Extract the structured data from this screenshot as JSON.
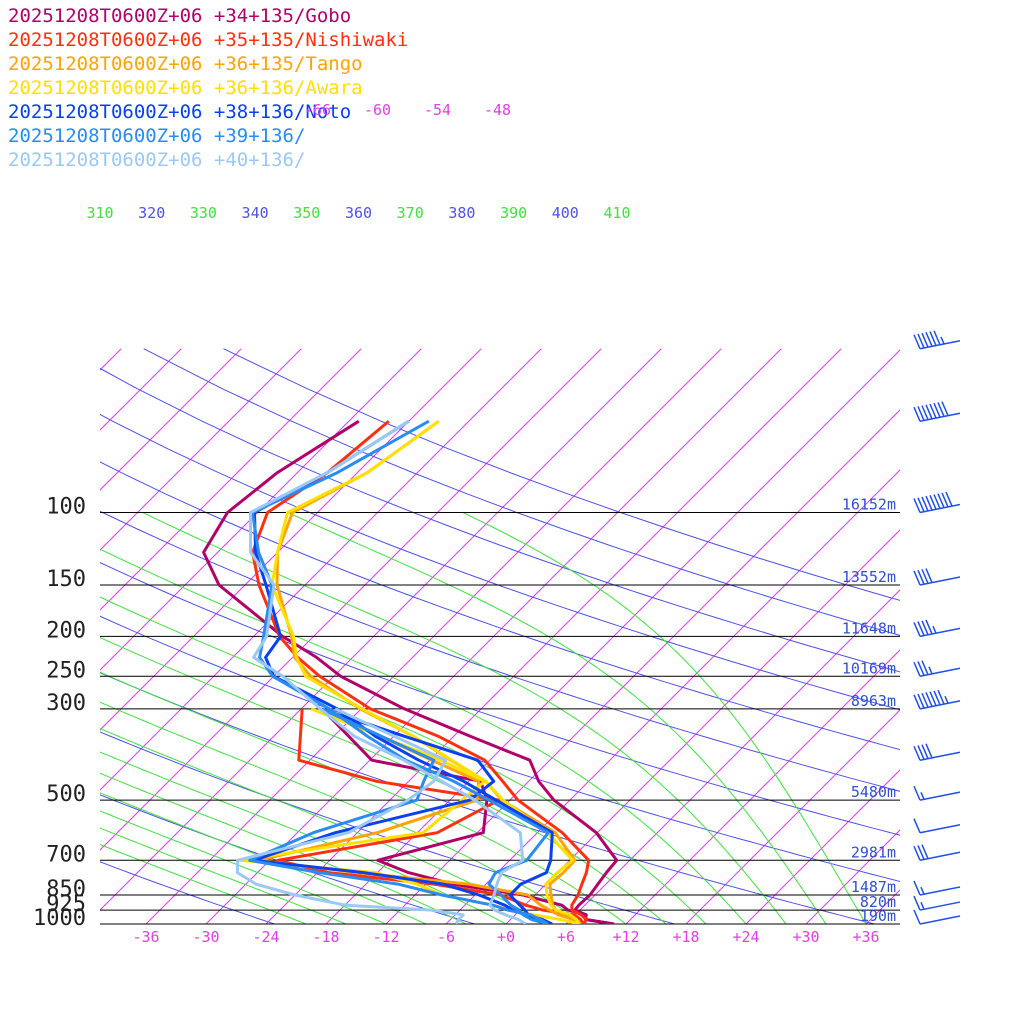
{
  "legend": [
    {
      "label": "20251208T0600Z+06 +34+135/Gobo",
      "color": "#b0006a"
    },
    {
      "label": "20251208T0600Z+06 +35+135/Nishiwaki",
      "color": "#ff3010"
    },
    {
      "label": "20251208T0600Z+06 +36+135/Tango",
      "color": "#ffa400"
    },
    {
      "label": "20251208T0600Z+06 +36+136/Awara",
      "color": "#ffe000"
    },
    {
      "label": "20251208T0600Z+06 +38+136/Noto",
      "color": "#0a40f0"
    },
    {
      "label": "20251208T0600Z+06 +39+136/",
      "color": "#2a8cf0"
    },
    {
      "label": "20251208T0600Z+06 +40+136/",
      "color": "#9cc8f4"
    }
  ],
  "chart_data": {
    "type": "line",
    "subtype": "skew-T log-P sounding",
    "pressure_labels": [
      "100",
      "150",
      "200",
      "250",
      "300",
      "500",
      "700",
      "850",
      "925",
      "1000"
    ],
    "pressure_levels": [
      100,
      150,
      200,
      250,
      300,
      500,
      700,
      850,
      925,
      1000
    ],
    "height_labels": [
      {
        "p": 100,
        "text": "16152m"
      },
      {
        "p": 150,
        "text": "13552m"
      },
      {
        "p": 200,
        "text": "11648m"
      },
      {
        "p": 250,
        "text": "10169m"
      },
      {
        "p": 300,
        "text": "8963m"
      },
      {
        "p": 500,
        "text": "5480m"
      },
      {
        "p": 700,
        "text": "2981m"
      },
      {
        "p": 850,
        "text": "1487m"
      },
      {
        "p": 925,
        "text": "820m"
      },
      {
        "p": 1000,
        "text": "190m"
      }
    ],
    "x_tick_labels": [
      "-36",
      "-30",
      "-24",
      "-18",
      "-12",
      "-6",
      "+0",
      "+6",
      "+12",
      "+18",
      "+24",
      "+30",
      "+36"
    ],
    "x_ticks": [
      -36,
      -30,
      -24,
      -18,
      -12,
      -6,
      0,
      6,
      12,
      18,
      24,
      30,
      36
    ],
    "upper_temp_labels": [
      "-66",
      "-60",
      "-54",
      "-48"
    ],
    "upper_temp_values": [
      -66,
      -60,
      -54,
      -48
    ],
    "theta_labels": [
      "310",
      "320",
      "330",
      "340",
      "350",
      "360",
      "370",
      "380",
      "390",
      "400",
      "410"
    ],
    "theta_values": [
      310,
      320,
      330,
      340,
      350,
      360,
      370,
      380,
      390,
      400,
      410
    ],
    "xlim": [
      -40,
      40
    ],
    "colors": {
      "isotherm": "#e040e0",
      "dry_adiabat": "#5050ee",
      "moist_adiabat": "#40e040",
      "height_label": "#3050d0"
    },
    "series": [
      {
        "name": "Gobo",
        "color": "#b0006a",
        "temperature": [
          [
            1000,
            10.8
          ],
          [
            975,
            7.5
          ],
          [
            950,
            7.1
          ],
          [
            925,
            5.5
          ],
          [
            900,
            5.4
          ],
          [
            850,
            5.5
          ],
          [
            800,
            5.2
          ],
          [
            750,
            4.9
          ],
          [
            700,
            4.7
          ],
          [
            600,
            -0.1
          ],
          [
            500,
            -7.6
          ],
          [
            450,
            -11.0
          ],
          [
            400,
            -14.0
          ],
          [
            350,
            -22.3
          ],
          [
            300,
            -31.7
          ],
          [
            250,
            -41.3
          ],
          [
            225,
            -45.6
          ],
          [
            200,
            -51.1
          ],
          [
            150,
            -62.6
          ],
          [
            125,
            -67.4
          ],
          [
            100,
            -69.0
          ],
          [
            80,
            -68.0
          ],
          [
            60,
            -65.0
          ]
        ],
        "dewpoint": [
          [
            1000,
            10.8
          ],
          [
            975,
            7.5
          ],
          [
            950,
            7.1
          ],
          [
            925,
            4.8
          ],
          [
            900,
            3.7
          ],
          [
            850,
            -1.2
          ],
          [
            800,
            -9.3
          ],
          [
            750,
            -14.9
          ],
          [
            700,
            -19.2
          ],
          [
            600,
            -11.4
          ],
          [
            500,
            -14.3
          ],
          [
            450,
            -16.8
          ],
          [
            400,
            -29.8
          ],
          [
            300,
            -39.9
          ]
        ]
      },
      {
        "name": "Nishiwaki",
        "color": "#ff3010",
        "temperature": [
          [
            1000,
            7.8
          ],
          [
            975,
            7.6
          ],
          [
            950,
            6.6
          ],
          [
            925,
            5.2
          ],
          [
            900,
            4.7
          ],
          [
            850,
            4.3
          ],
          [
            800,
            3.6
          ],
          [
            750,
            2.9
          ],
          [
            700,
            1.9
          ],
          [
            600,
            -3.5
          ],
          [
            500,
            -11.2
          ],
          [
            450,
            -14.6
          ],
          [
            400,
            -18.5
          ],
          [
            350,
            -25.5
          ],
          [
            300,
            -35.1
          ],
          [
            250,
            -43.4
          ],
          [
            225,
            -47.5
          ],
          [
            200,
            -51.4
          ],
          [
            150,
            -58.6
          ],
          [
            125,
            -62.5
          ],
          [
            100,
            -65.0
          ],
          [
            80,
            -63.0
          ],
          [
            60,
            -62.0
          ]
        ],
        "dewpoint": [
          [
            1000,
            7.8
          ],
          [
            975,
            7.0
          ],
          [
            950,
            5.9
          ],
          [
            925,
            2.3
          ],
          [
            900,
            0.1
          ],
          [
            850,
            -3.4
          ],
          [
            800,
            -11.2
          ],
          [
            750,
            -22.9
          ],
          [
            700,
            -29.2
          ],
          [
            600,
            -16.0
          ],
          [
            500,
            -13.1
          ],
          [
            450,
            -27.2
          ],
          [
            400,
            -37.1
          ],
          [
            300,
            -41.9
          ]
        ]
      },
      {
        "name": "Tango",
        "color": "#ffa400",
        "temperature": [
          [
            1000,
            7.5
          ],
          [
            975,
            6.3
          ],
          [
            950,
            5.1
          ],
          [
            925,
            3.6
          ],
          [
            900,
            2.8
          ],
          [
            850,
            1.6
          ],
          [
            800,
            0.4
          ],
          [
            750,
            0.6
          ],
          [
            700,
            0.5
          ],
          [
            600,
            -4.2
          ],
          [
            500,
            -12.8
          ],
          [
            450,
            -16.3
          ],
          [
            400,
            -21.9
          ],
          [
            350,
            -28.0
          ],
          [
            300,
            -36.1
          ],
          [
            250,
            -44.3
          ],
          [
            225,
            -47.8
          ],
          [
            200,
            -50.2
          ],
          [
            150,
            -56.8
          ],
          [
            125,
            -60.0
          ],
          [
            100,
            -62.5
          ],
          [
            80,
            -59.0
          ],
          [
            60,
            -57.0
          ]
        ],
        "dewpoint": [
          [
            1000,
            7.5
          ],
          [
            975,
            6.3
          ],
          [
            950,
            4.3
          ],
          [
            925,
            3.0
          ],
          [
            900,
            1.6
          ],
          [
            850,
            -0.7
          ],
          [
            800,
            -7.7
          ],
          [
            750,
            -20.0
          ],
          [
            700,
            -31.1
          ],
          [
            600,
            -22.0
          ],
          [
            500,
            -15.3
          ],
          [
            450,
            -17.0
          ],
          [
            400,
            -23.8
          ],
          [
            300,
            -40.0
          ]
        ]
      },
      {
        "name": "Awara",
        "color": "#ffe000",
        "temperature": [
          [
            1000,
            7.3
          ],
          [
            975,
            6.6
          ],
          [
            950,
            5.5
          ],
          [
            925,
            3.6
          ],
          [
            900,
            2.6
          ],
          [
            850,
            1.2
          ],
          [
            800,
            0.0
          ],
          [
            750,
            0.0
          ],
          [
            700,
            0.3
          ],
          [
            600,
            -5.0
          ],
          [
            500,
            -12.7
          ],
          [
            450,
            -16.3
          ],
          [
            400,
            -21.8
          ],
          [
            350,
            -28.0
          ],
          [
            300,
            -35.9
          ],
          [
            250,
            -44.8
          ],
          [
            225,
            -47.6
          ],
          [
            200,
            -50.0
          ],
          [
            150,
            -57.3
          ],
          [
            125,
            -60.0
          ],
          [
            100,
            -63.0
          ],
          [
            80,
            -59.0
          ],
          [
            60,
            -57.0
          ]
        ],
        "dewpoint": [
          [
            1000,
            7.3
          ],
          [
            975,
            5.0
          ],
          [
            950,
            1.8
          ],
          [
            925,
            -0.9
          ],
          [
            900,
            -3.2
          ],
          [
            850,
            -9.3
          ],
          [
            800,
            -12.9
          ],
          [
            750,
            -18.2
          ],
          [
            700,
            -33.0
          ],
          [
            600,
            -17.4
          ],
          [
            500,
            -16.8
          ],
          [
            450,
            -16.4
          ],
          [
            400,
            -22.9
          ],
          [
            300,
            -41.0
          ]
        ]
      },
      {
        "name": "Noto",
        "color": "#0a40f0",
        "temperature": [
          [
            1000,
            4.6
          ],
          [
            975,
            2.3
          ],
          [
            950,
            1.3
          ],
          [
            925,
            0.5
          ],
          [
            900,
            -0.5
          ],
          [
            850,
            -2.5
          ],
          [
            800,
            -2.5
          ],
          [
            750,
            -1.1
          ],
          [
            700,
            -1.9
          ],
          [
            600,
            -4.5
          ],
          [
            500,
            -13.4
          ],
          [
            450,
            -18.5
          ],
          [
            400,
            -25.1
          ],
          [
            350,
            -31.8
          ],
          [
            300,
            -38.4
          ],
          [
            250,
            -48.0
          ],
          [
            225,
            -50.7
          ],
          [
            200,
            -51.3
          ],
          [
            150,
            -57.9
          ],
          [
            125,
            -62.2
          ],
          [
            100,
            -66.3
          ],
          [
            80,
            -63.0
          ],
          [
            60,
            -60.0
          ]
        ],
        "dewpoint": [
          [
            1000,
            4.6
          ],
          [
            975,
            3.2
          ],
          [
            950,
            1.0
          ],
          [
            925,
            -0.7
          ],
          [
            900,
            -2.0
          ],
          [
            850,
            -5.6
          ],
          [
            800,
            -10.3
          ],
          [
            750,
            -19.4
          ],
          [
            700,
            -31.6
          ],
          [
            600,
            -26.2
          ],
          [
            500,
            -16.0
          ],
          [
            450,
            -15.5
          ],
          [
            400,
            -19.2
          ],
          [
            300,
            -40.1
          ]
        ]
      },
      {
        "name": "Station +39+136",
        "color": "#2a8cf0",
        "temperature": [
          [
            1000,
            4.2
          ],
          [
            975,
            2.1
          ],
          [
            950,
            0.8
          ],
          [
            925,
            -0.1
          ],
          [
            900,
            -1.4
          ],
          [
            850,
            -3.4
          ],
          [
            800,
            -5.7
          ],
          [
            750,
            -6.2
          ],
          [
            700,
            -4.3
          ],
          [
            600,
            -4.9
          ],
          [
            500,
            -14.1
          ],
          [
            450,
            -19.5
          ],
          [
            400,
            -26.4
          ],
          [
            350,
            -32.6
          ],
          [
            300,
            -39.2
          ],
          [
            250,
            -48.1
          ],
          [
            225,
            -51.3
          ],
          [
            200,
            -53.0
          ],
          [
            150,
            -57.3
          ],
          [
            125,
            -61.9
          ],
          [
            100,
            -66.5
          ],
          [
            80,
            -62.0
          ],
          [
            60,
            -58.0
          ]
        ],
        "dewpoint": [
          [
            1000,
            4.2
          ],
          [
            975,
            3.0
          ],
          [
            950,
            1.5
          ],
          [
            925,
            -1.2
          ],
          [
            900,
            -3.2
          ],
          [
            850,
            -9.3
          ],
          [
            800,
            -14.8
          ],
          [
            750,
            -23.8
          ],
          [
            700,
            -32.0
          ],
          [
            600,
            -28.4
          ],
          [
            500,
            -21.3
          ],
          [
            450,
            -22.5
          ],
          [
            400,
            -23.6
          ],
          [
            300,
            -40.0
          ]
        ]
      },
      {
        "name": "Station +40+136",
        "color": "#9cc8f4",
        "temperature": [
          [
            1000,
            2.0
          ],
          [
            975,
            0.8
          ],
          [
            950,
            -1.0
          ],
          [
            925,
            -2.5
          ],
          [
            900,
            -3.5
          ],
          [
            850,
            -4.1
          ],
          [
            800,
            -4.9
          ],
          [
            750,
            -5.6
          ],
          [
            700,
            -4.7
          ],
          [
            600,
            -7.7
          ],
          [
            500,
            -15.5
          ],
          [
            450,
            -20.7
          ],
          [
            400,
            -26.6
          ],
          [
            350,
            -33.9
          ],
          [
            300,
            -40.1
          ],
          [
            250,
            -47.1
          ],
          [
            225,
            -51.9
          ],
          [
            200,
            -52.7
          ],
          [
            150,
            -57.1
          ],
          [
            125,
            -62.7
          ],
          [
            100,
            -66.7
          ],
          [
            80,
            -63.0
          ],
          [
            60,
            -60.0
          ]
        ],
        "dewpoint": [
          [
            1000,
            -5.0
          ],
          [
            975,
            -5.2
          ],
          [
            950,
            -5.2
          ],
          [
            925,
            -8.8
          ],
          [
            900,
            -17.9
          ],
          [
            850,
            -24.0
          ],
          [
            800,
            -29.0
          ],
          [
            750,
            -32.0
          ],
          [
            700,
            -33.2
          ],
          [
            600,
            -24.9
          ],
          [
            500,
            -22.2
          ],
          [
            450,
            -21.5
          ],
          [
            400,
            -22.4
          ],
          [
            300,
            -38.6
          ]
        ]
      }
    ],
    "wind_barbs": [
      {
        "p": 40,
        "speed": 65
      },
      {
        "p": 60,
        "speed": 80
      },
      {
        "p": 100,
        "speed": 90
      },
      {
        "p": 150,
        "speed": 40
      },
      {
        "p": 200,
        "speed": 45
      },
      {
        "p": 250,
        "speed": 35
      },
      {
        "p": 300,
        "speed": 75
      },
      {
        "p": 400,
        "speed": 40
      },
      {
        "p": 500,
        "speed": 15
      },
      {
        "p": 600,
        "speed": 10
      },
      {
        "p": 700,
        "speed": 30
      },
      {
        "p": 850,
        "speed": 15
      },
      {
        "p": 925,
        "speed": 15
      },
      {
        "p": 1000,
        "speed": 10
      }
    ]
  }
}
